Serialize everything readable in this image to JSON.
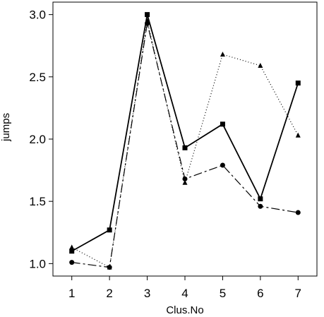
{
  "chart_data": {
    "type": "line",
    "title": "",
    "xlabel": "Clus.No",
    "ylabel": "jumps",
    "x": [
      1,
      2,
      3,
      4,
      5,
      6,
      7
    ],
    "x_ticks": [
      "1",
      "2",
      "3",
      "4",
      "5",
      "6",
      "7"
    ],
    "y_ticks": [
      "1.0",
      "1.5",
      "2.0",
      "2.5",
      "3.0"
    ],
    "xlim": [
      0.5,
      7.5
    ],
    "ylim": [
      0.9,
      3.1
    ],
    "grid": false,
    "series": [
      {
        "marker": "square",
        "line_style": "solid",
        "color": "#000000",
        "values": [
          1.1,
          1.27,
          3.0,
          1.93,
          2.12,
          1.52,
          2.45
        ]
      },
      {
        "marker": "triangle",
        "line_style": "dotted",
        "color": "#000000",
        "values": [
          1.13,
          0.97,
          2.95,
          1.65,
          2.68,
          2.59,
          2.03
        ]
      },
      {
        "marker": "circle",
        "line_style": "dashed",
        "color": "#000000",
        "values": [
          1.01,
          0.97,
          2.93,
          1.68,
          1.79,
          1.46,
          1.41
        ]
      }
    ]
  }
}
